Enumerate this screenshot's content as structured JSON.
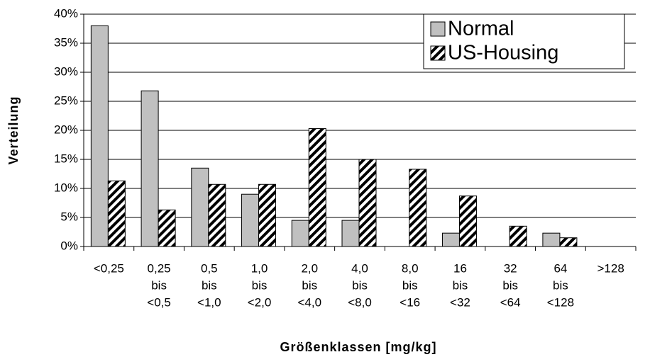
{
  "chart_data": {
    "type": "bar",
    "ylabel": "Verteilung",
    "xlabel": "Größenklassen [mg/kg]",
    "categories": [
      [
        "<0,25"
      ],
      [
        "0,25",
        "bis",
        "<0,5"
      ],
      [
        "0,5",
        "bis",
        "<1,0"
      ],
      [
        "1,0",
        "bis",
        "<2,0"
      ],
      [
        "2,0",
        "bis",
        "<4,0"
      ],
      [
        "4,0",
        "bis",
        "<8,0"
      ],
      [
        "8,0",
        "bis",
        "<16"
      ],
      [
        "16",
        "bis",
        "<32"
      ],
      [
        "32",
        "bis",
        "<64"
      ],
      [
        "64",
        "bis",
        "<128"
      ],
      [
        ">128"
      ]
    ],
    "series": [
      {
        "name": "Normal",
        "color": "#c0c0c0",
        "values": [
          38,
          26.8,
          13.5,
          9,
          4.5,
          4.5,
          0,
          2.3,
          0,
          2.3,
          0
        ]
      },
      {
        "name": "US-Housing",
        "color": "hatch",
        "values": [
          11.3,
          6.3,
          10.7,
          10.7,
          20.3,
          15,
          13.3,
          8.7,
          3.5,
          1.5,
          0
        ]
      }
    ],
    "ylim": [
      0,
      40
    ],
    "yticks": [
      {
        "value": 0,
        "label": "0%"
      },
      {
        "value": 5,
        "label": "5%"
      },
      {
        "value": 10,
        "label": "10%"
      },
      {
        "value": 15,
        "label": "15%"
      },
      {
        "value": 20,
        "label": "20%"
      },
      {
        "value": 25,
        "label": "25%"
      },
      {
        "value": 30,
        "label": "30%"
      },
      {
        "value": 35,
        "label": "35%"
      },
      {
        "value": 40,
        "label": "40%"
      }
    ],
    "grid": true,
    "legend": "upper right"
  }
}
